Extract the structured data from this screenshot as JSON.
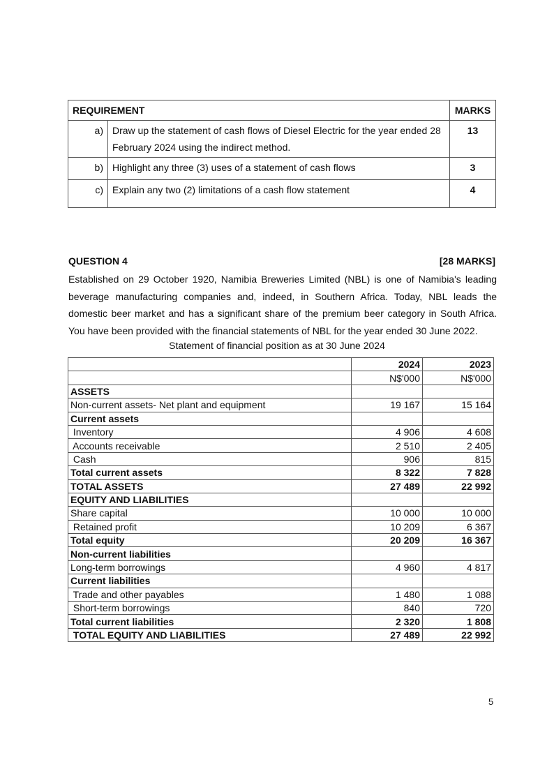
{
  "requirements": {
    "header": {
      "requirement": "REQUIREMENT",
      "marks": "MARKS"
    },
    "rows": [
      {
        "label": "a)",
        "text": "Draw up the statement of cash flows of Diesel Electric for the year ended 28 February 2024 using the indirect method.",
        "marks": "13"
      },
      {
        "label": "b)",
        "text": "Highlight any three (3) uses of a statement of cash flows",
        "marks": "3"
      },
      {
        "label": "c)",
        "text": "Explain any two (2) limitations of a cash flow statement",
        "marks": "4"
      }
    ]
  },
  "question": {
    "title": "QUESTION 4",
    "marks": "[28 MARKS]",
    "paragraph": "Established on 29 October 1920, Namibia Breweries Limited (NBL) is one of Namibia's leading beverage manufacturing companies and, indeed, in Southern Africa. Today, NBL leads the domestic beer market and has a significant share of the premium beer category in South Africa. You have been provided with the financial statements of NBL for the year ended 30 June 2022.",
    "caption": "Statement of financial position as at 30 June 2024"
  },
  "balance_sheet": {
    "rows": [
      {
        "label": "",
        "y1": "2024",
        "y2": "2023",
        "bold": true
      },
      {
        "label": "",
        "y1": "N$'000",
        "y2": "N$'000",
        "bold": false
      },
      {
        "label": "ASSETS",
        "y1": "",
        "y2": "",
        "bold": true
      },
      {
        "label": "Non-current assets- Net plant and equipment",
        "y1": "19 167",
        "y2": "15 164",
        "bold": false
      },
      {
        "label": "Current assets",
        "y1": "",
        "y2": "",
        "bold": true
      },
      {
        "label": " Inventory",
        "y1": "4 906",
        "y2": "4 608",
        "bold": false
      },
      {
        "label": " Accounts receivable",
        "y1": "2 510",
        "y2": "2 405",
        "bold": false
      },
      {
        "label": " Cash",
        "y1": "906",
        "y2": "815",
        "bold": false
      },
      {
        "label": "Total current assets",
        "y1": "8 322",
        "y2": "7 828",
        "bold": true
      },
      {
        "label": "TOTAL ASSETS",
        "y1": "27 489",
        "y2": "22 992",
        "bold": true
      },
      {
        "label": "EQUITY AND LIABILITIES",
        "y1": "",
        "y2": "",
        "bold": true
      },
      {
        "label": "Share capital",
        "y1": "10 000",
        "y2": "10 000",
        "bold": false
      },
      {
        "label": " Retained profit",
        "y1": "10 209",
        "y2": "6 367",
        "bold": false
      },
      {
        "label": "Total equity",
        "y1": "20 209",
        "y2": "16 367",
        "bold": true
      },
      {
        "label": "Non-current liabilities",
        "y1": "",
        "y2": "",
        "bold": true
      },
      {
        "label": "Long-term borrowings",
        "y1": "4 960",
        "y2": "4 817",
        "bold": false
      },
      {
        "label": "Current liabilities",
        "y1": "",
        "y2": "",
        "bold": true
      },
      {
        "label": " Trade and other payables",
        "y1": "1 480",
        "y2": "1 088",
        "bold": false
      },
      {
        "label": " Short-term borrowings",
        "y1": "840",
        "y2": "720",
        "bold": false
      },
      {
        "label": "Total current liabilities",
        "y1": "2 320",
        "y2": "1 808",
        "bold": true
      },
      {
        "label": " TOTAL EQUITY AND LIABILITIES",
        "y1": "27 489",
        "y2": "22 992",
        "bold": true
      }
    ]
  },
  "page_number": "5"
}
